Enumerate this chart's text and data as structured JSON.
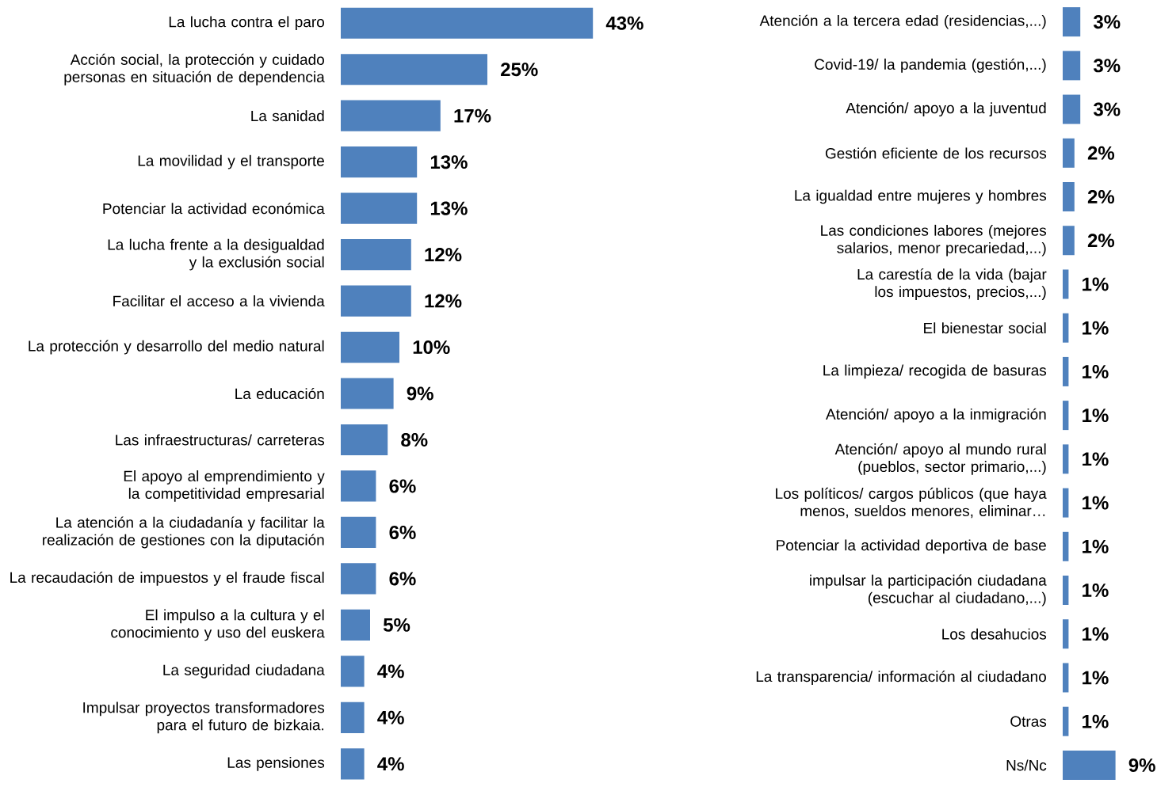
{
  "chart_data": [
    {
      "type": "bar",
      "orientation": "horizontal",
      "color": "#4f81bd",
      "categories": [
        "La lucha contra el paro",
        "Acción social, la protección y cuidado personas en situación de dependencia",
        "La sanidad",
        "La movilidad y el transporte",
        "Potenciar la actividad económica",
        "La lucha frente a la desigualdad y la exclusión social",
        "Facilitar el acceso a la vivienda",
        "La protección y desarrollo del medio natural",
        "La educación",
        "Las infraestructuras/ carreteras",
        "El apoyo al emprendimiento y la competitividad empresarial",
        "La atención a la ciudadanía y facilitar la realización de gestiones con la diputación",
        "La recaudación de impuestos y el fraude fiscal",
        "El impulso a la cultura y el conocimiento y uso del euskera",
        "La seguridad ciudadana",
        "Impulsar proyectos transformadores para el futuro de bizkaia.",
        "Las pensiones"
      ],
      "values": [
        43,
        25,
        17,
        13,
        13,
        12,
        12,
        10,
        9,
        8,
        6,
        6,
        6,
        5,
        4,
        4,
        4
      ],
      "value_labels": [
        "43%",
        "25%",
        "17%",
        "13%",
        "13%",
        "12%",
        "12%",
        "10%",
        "9%",
        "8%",
        "6%",
        "6%",
        "6%",
        "5%",
        "4%",
        "4%",
        "4%"
      ]
    },
    {
      "type": "bar",
      "orientation": "horizontal",
      "color": "#4f81bd",
      "categories": [
        "Atención a la tercera edad (residencias,...)",
        "Covid-19/ la pandemia (gestión,...)",
        "Atención/ apoyo a la juventud",
        "Gestión eficiente de los recursos",
        "La igualdad entre mujeres y hombres",
        "Las condiciones labores (mejores salarios, menor precariedad,...)",
        "La carestía de la vida (bajar los impuestos, precios,...)",
        "El bienestar social",
        "La limpieza/ recogida de basuras",
        "Atención/ apoyo a la inmigración",
        "Atención/ apoyo al mundo rural (pueblos, sector primario,...)",
        "Los políticos/ cargos públicos (que haya menos, sueldos menores, eliminar…",
        "Potenciar la actividad deportiva de base",
        "impulsar la participación ciudadana (escuchar al ciudadano,...)",
        "Los desahucios",
        "La transparencia/ información al ciudadano",
        "Otras",
        "Ns/Nc"
      ],
      "values": [
        3,
        3,
        3,
        2,
        2,
        2,
        1,
        1,
        1,
        1,
        1,
        1,
        1,
        1,
        1,
        1,
        1,
        9
      ],
      "value_labels": [
        "3%",
        "3%",
        "3%",
        "2%",
        "2%",
        "2%",
        "1%",
        "1%",
        "1%",
        "1%",
        "1%",
        "1%",
        "1%",
        "1%",
        "1%",
        "1%",
        "1%",
        "9%"
      ]
    }
  ]
}
